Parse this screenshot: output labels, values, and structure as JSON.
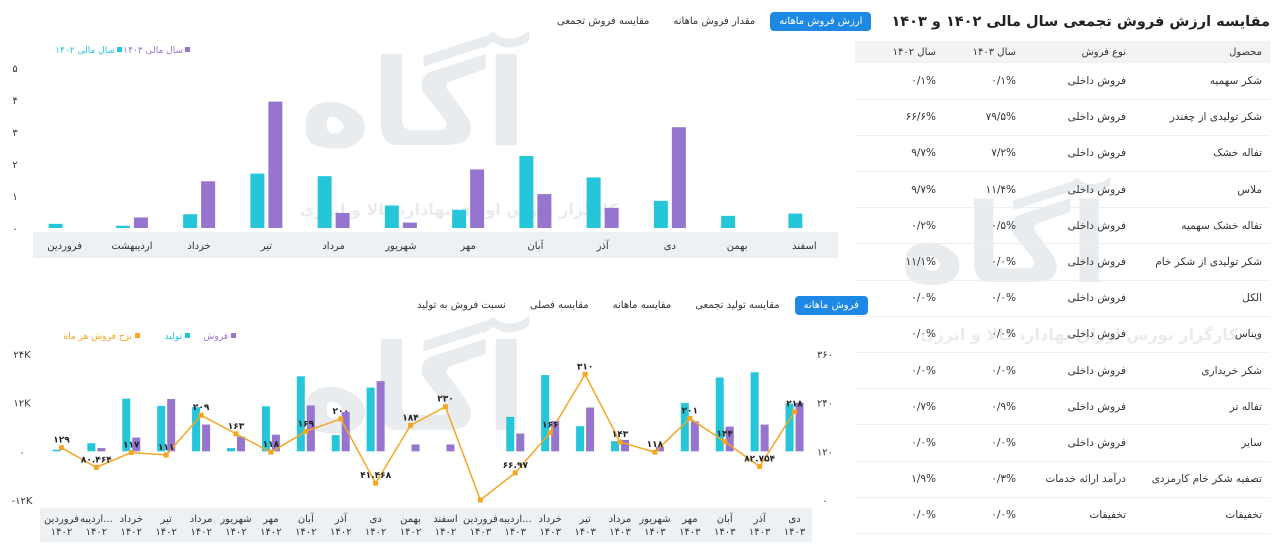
{
  "right_panel": {
    "title": "مقایسه ارزش فروش تجمعی سال مالی ۱۴۰۲ و ۱۴۰۳",
    "columns": [
      "محصول",
      "نوع فروش",
      "سال ۱۴۰۳",
      "سال ۱۴۰۲"
    ],
    "rows": [
      {
        "product": "شکر سهمیه",
        "type": "فروش داخلی",
        "y1403": "۰/۱%",
        "y1402": "۰/۱%"
      },
      {
        "product": "شکر تولیدی از چغندر",
        "type": "فروش داخلی",
        "y1403": "۷۹/۵%",
        "y1402": "۶۶/۶%"
      },
      {
        "product": "تفاله خشک",
        "type": "فروش داخلی",
        "y1403": "۷/۲%",
        "y1402": "۹/۷%"
      },
      {
        "product": "ملاس",
        "type": "فروش داخلی",
        "y1403": "۱۱/۴%",
        "y1402": "۹/۷%"
      },
      {
        "product": "تفاله خشک سهمیه",
        "type": "فروش داخلی",
        "y1403": "۰/۵%",
        "y1402": "۰/۲%"
      },
      {
        "product": "شکر تولیدی از شکر خام",
        "type": "فروش داخلی",
        "y1403": "۰/۰%",
        "y1402": "۱۱/۱%"
      },
      {
        "product": "الکل",
        "type": "فروش داخلی",
        "y1403": "۰/۰%",
        "y1402": "۰/۰%"
      },
      {
        "product": "ویناس",
        "type": "فروش داخلی",
        "y1403": "۰/۰%",
        "y1402": "۰/۰%"
      },
      {
        "product": "شکر خریداری",
        "type": "فروش داخلی",
        "y1403": "۰/۰%",
        "y1402": "۰/۰%"
      },
      {
        "product": "تفاله تر",
        "type": "فروش داخلی",
        "y1403": "۰/۹%",
        "y1402": "۰/۷%"
      },
      {
        "product": "سایر",
        "type": "فروش داخلی",
        "y1403": "۰/۰%",
        "y1402": "۰/۰%"
      },
      {
        "product": "تصفیه شکر خام کارمزدی",
        "type": "درآمد ارائه خدمات",
        "y1403": "۰/۳%",
        "y1402": "۱/۹%"
      },
      {
        "product": "تخفیفات",
        "type": "تخفیفات",
        "y1403": "۰/۰%",
        "y1402": "۰/۰%"
      }
    ]
  },
  "top_tabs": [
    {
      "label": "ارزش فروش ماهانه",
      "active": true
    },
    {
      "label": "مقدار فروش ماهانه",
      "active": false
    },
    {
      "label": "مقایسه فروش تجمعی",
      "active": false
    }
  ],
  "bottom_tabs": [
    {
      "label": "فروش ماهانه",
      "active": true
    },
    {
      "label": "مقایسه تولید تجمعی",
      "active": false
    },
    {
      "label": "مقایسه ماهانه",
      "active": false
    },
    {
      "label": "مقایسه فصلی",
      "active": false
    },
    {
      "label": "نسبت فروش به تولید",
      "active": false
    }
  ],
  "watermark": {
    "brand": "آگاه",
    "tagline": "کارگزار بورس اوراق بهادار، کالا و انرژی"
  },
  "colors": {
    "accent": "#1e88e5",
    "cyan": "#26c6da",
    "purple": "#9575cd",
    "orange": "#f5a623"
  },
  "chart_data": [
    {
      "type": "bar",
      "legend": [
        "سال مالی ۱۴۰۳",
        "سال مالی ۱۴۰۲"
      ],
      "legend_position": "top-left",
      "yticks": [
        "۰",
        "۱",
        "۲",
        "۳",
        "۴",
        "۵"
      ],
      "ylim": [
        0,
        5
      ],
      "categories": [
        "اسفند",
        "بهمن",
        "دی",
        "آذر",
        "آبان",
        "مهر",
        "شهریور",
        "مرداد",
        "تیر",
        "خرداد",
        "اردیبهشت",
        "فروردین"
      ],
      "series": [
        {
          "name": "سال مالی ۱۴۰۲",
          "color": "#26c6da",
          "values": [
            0.45,
            0.38,
            0.85,
            1.58,
            2.25,
            0.57,
            0.7,
            1.62,
            1.7,
            0.43,
            0.07,
            0.13
          ]
        },
        {
          "name": "سال مالی ۱۴۰۳",
          "color": "#9575cd",
          "values": [
            0,
            0,
            3.15,
            0.63,
            1.06,
            1.83,
            0.17,
            0.47,
            3.95,
            1.46,
            0.33,
            0
          ]
        }
      ]
    },
    {
      "type": "bar",
      "legend": [
        "فروش",
        "تولید",
        "نرخ فروش هر ماه"
      ],
      "legend_position": "top-left",
      "yticks_left": [
        "-۱۲K",
        "۰",
        "۱۲K",
        "۲۴K"
      ],
      "yticks_right": [
        "۰",
        "۱۲۰",
        "۲۴۰",
        "۳۶۰"
      ],
      "ylim_left": [
        -12000,
        24000
      ],
      "ylim_right": [
        0,
        360
      ],
      "categories": [
        [
          "دی",
          "۱۴۰۳"
        ],
        [
          "آذر",
          "۱۴۰۳"
        ],
        [
          "آبان",
          "۱۴۰۳"
        ],
        [
          "مهر",
          "۱۴۰۳"
        ],
        [
          "شهریور",
          "۱۴۰۳"
        ],
        [
          "مرداد",
          "۱۴۰۳"
        ],
        [
          "تیر",
          "۱۴۰۳"
        ],
        [
          "خرداد",
          "۱۴۰۳"
        ],
        [
          "اردیبه...",
          "۱۴۰۳"
        ],
        [
          "فروردین",
          "۱۴۰۳"
        ],
        [
          "اسفند",
          "۱۴۰۲"
        ],
        [
          "بهمن",
          "۱۴۰۲"
        ],
        [
          "دی",
          "۱۴۰۲"
        ],
        [
          "آذر",
          "۱۴۰۲"
        ],
        [
          "آبان",
          "۱۴۰۲"
        ],
        [
          "مهر",
          "۱۴۰۲"
        ],
        [
          "شهریور",
          "۱۴۰۲"
        ],
        [
          "مرداد",
          "۱۴۰۲"
        ],
        [
          "تیر",
          "۱۴۰۲"
        ],
        [
          "خرداد",
          "۱۴۰۲"
        ],
        [
          "اردیبه...",
          "۱۴۰۲"
        ],
        [
          "فروردین",
          "۱۴۰۲"
        ]
      ],
      "series": [
        {
          "name": "تولید",
          "color": "#26c6da",
          "values": [
            11800,
            19500,
            18200,
            11900,
            0,
            2500,
            6200,
            18800,
            8500,
            0,
            0,
            0,
            15700,
            4000,
            18500,
            11100,
            800,
            10900,
            11200,
            13000,
            2000,
            400
          ]
        },
        {
          "name": "فروش",
          "color": "#9575cd",
          "values": [
            12000,
            6600,
            6100,
            7400,
            1100,
            2800,
            10800,
            7500,
            4400,
            0,
            1700,
            1700,
            17300,
            9700,
            11300,
            4100,
            3600,
            6600,
            12900,
            3400,
            800,
            0
          ]
        },
        {
          "name": "نرخ فروش هر ماه",
          "color": "#f5a623",
          "values": [
            218,
            82.754,
            144,
            201,
            118,
            143,
            310,
            166,
            66.97,
            0,
            230,
            184,
            41.468,
            200,
            169,
            118,
            163,
            209,
            111,
            117,
            80.464,
            129
          ],
          "labels": [
            "۲۱۸",
            "۸۲.۷۵۴",
            "۱۴۴",
            "۲۰۱",
            "۱۱۸",
            "۱۴۳",
            "۳۱۰",
            "۱۶۶",
            "۶۶.۹۷",
            "",
            "۲۳۰",
            "۱۸۴",
            "۴۱.۴۶۸",
            "۲۰۰",
            "۱۶۹",
            "۱۱۸",
            "۱۶۳",
            "۲۰۹",
            "۱۱۱",
            "۱۱۷",
            "۸۰.۴۶۴",
            "۱۲۹"
          ]
        }
      ]
    }
  ]
}
